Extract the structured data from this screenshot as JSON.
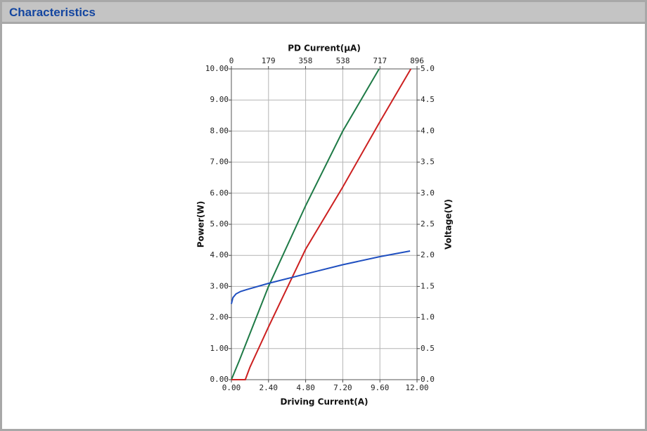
{
  "header": {
    "title": "Characteristics"
  },
  "chart_data": {
    "type": "line",
    "x_label": "Driving Current(A)",
    "x2_label": "PD Current(μA)",
    "y_label": "Power(W)",
    "y2_label": "Voltage(V)",
    "xlim": [
      0,
      12
    ],
    "xticks": [
      {
        "value": 0,
        "label": "0.00"
      },
      {
        "value": 2.4,
        "label": "2.40"
      },
      {
        "value": 4.8,
        "label": "4.80"
      },
      {
        "value": 7.2,
        "label": "7.20"
      },
      {
        "value": 9.6,
        "label": "9.60"
      },
      {
        "value": 12,
        "label": "12.00"
      }
    ],
    "x2lim": [
      0,
      896
    ],
    "x2ticks": [
      0,
      179,
      358,
      538,
      717,
      896
    ],
    "ylim": [
      0,
      10
    ],
    "yticks": [
      {
        "value": 0,
        "label": "0.00"
      },
      {
        "value": 1,
        "label": "1.00"
      },
      {
        "value": 2,
        "label": "2.00"
      },
      {
        "value": 3,
        "label": "3.00"
      },
      {
        "value": 4,
        "label": "4.00"
      },
      {
        "value": 5,
        "label": "5.00"
      },
      {
        "value": 6,
        "label": "6.00"
      },
      {
        "value": 7,
        "label": "7.00"
      },
      {
        "value": 8,
        "label": "8.00"
      },
      {
        "value": 9,
        "label": "9.00"
      },
      {
        "value": 10,
        "label": "10.00"
      }
    ],
    "y2lim": [
      0,
      5
    ],
    "y2ticks": [
      {
        "value": 0,
        "label": "0.0"
      },
      0.5,
      {
        "value": 1,
        "label": "1.0"
      },
      1.5,
      {
        "value": 2,
        "label": "2.0"
      },
      2.5,
      {
        "value": 3,
        "label": "3.0"
      },
      3.5,
      {
        "value": 4,
        "label": "4.0"
      },
      4.5,
      {
        "value": 5,
        "label": "5.0"
      }
    ],
    "grid": true,
    "series": [
      {
        "color": "#1e7a46",
        "x": [
          0,
          0.5,
          2.4,
          4.8,
          7.2,
          9.55
        ],
        "values": [
          0,
          0.6,
          3.0,
          5.6,
          8.0,
          10
        ]
      },
      {
        "color": "#cc2020",
        "x": [
          0,
          0.9,
          1.2,
          2.4,
          4.8,
          7.2,
          9.6,
          11.6
        ],
        "values": [
          0,
          0,
          0.4,
          1.7,
          4.2,
          6.2,
          8.3,
          10
        ]
      },
      {
        "color": "#1f4fc0",
        "axis": "y2",
        "x": [
          0,
          0.1,
          0.3,
          0.6,
          1.0,
          2.4,
          4.8,
          7.2,
          9.6,
          11.55
        ],
        "values": [
          1.22,
          1.32,
          1.38,
          1.42,
          1.45,
          1.55,
          1.7,
          1.85,
          1.98,
          2.07
        ]
      }
    ]
  }
}
